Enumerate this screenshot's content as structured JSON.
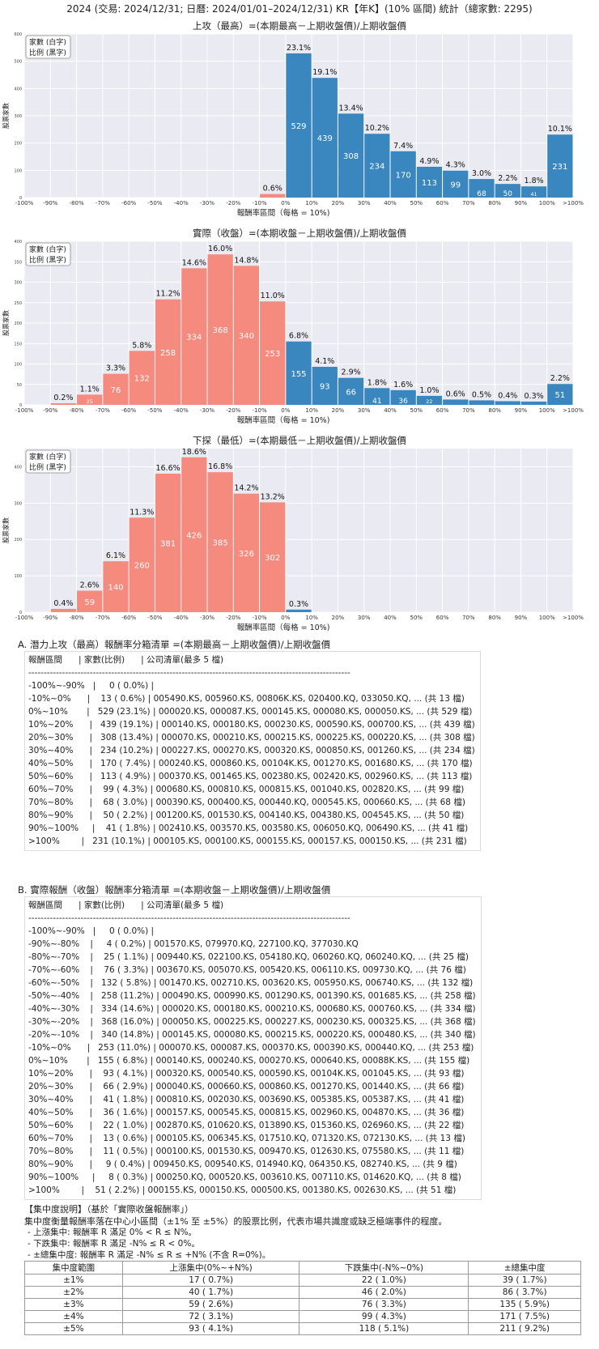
{
  "page_title": "2024 (交易: 2024/12/31; 日曆: 2024/01/01–2024/12/31) KR【年K】(10% 區間) 統計（總家數: 2295)",
  "colors": {
    "positive": "#3a87c0",
    "negative": "#f58a7e",
    "panel_bg": "#eaeaf2",
    "grid": "#ffffff"
  },
  "chart_data": [
    {
      "type": "bar",
      "title": "上攻（最高）=(本期最高－上期收盤價)/上期收盤價",
      "xlabel": "報酬率區間（每格 = 10%)",
      "ylabel": "股票家數",
      "legend": [
        "家數 (白字)",
        "比例 (黑字)"
      ],
      "legend_position": "top-left",
      "tick_labels": [
        "-100%",
        "-90%",
        "-80%",
        "-70%",
        "-60%",
        "-50%",
        "-40%",
        "-30%",
        "-20%",
        "-10%",
        "0%",
        "10%",
        "20%",
        "30%",
        "40%",
        "50%",
        "60%",
        "70%",
        "80%",
        "90%",
        "100%",
        ">100%"
      ],
      "categories": [
        "-100%~-90%",
        "-90%~-80%",
        "-80%~-70%",
        "-70%~-60%",
        "-60%~-50%",
        "-50%~-40%",
        "-40%~-30%",
        "-30%~-20%",
        "-20%~-10%",
        "-10%~0%",
        "0%~10%",
        "10%~20%",
        "20%~30%",
        "30%~40%",
        "40%~50%",
        "50%~60%",
        "60%~70%",
        "70%~80%",
        "80%~90%",
        "90%~100%",
        ">100%"
      ],
      "values": [
        0,
        0,
        0,
        0,
        0,
        0,
        0,
        0,
        0,
        13,
        529,
        439,
        308,
        234,
        170,
        113,
        99,
        68,
        50,
        41,
        231
      ],
      "percents": [
        "",
        "",
        "",
        "",
        "",
        "",
        "",
        "",
        "",
        "0.6%",
        "23.1%",
        "19.1%",
        "13.4%",
        "10.2%",
        "7.4%",
        "4.9%",
        "4.3%",
        "3.0%",
        "2.2%",
        "1.8%",
        "10.1%"
      ],
      "yticks": [
        0,
        100,
        200,
        300,
        400,
        500,
        600
      ],
      "ylim": [
        0,
        600
      ]
    },
    {
      "type": "bar",
      "title": "實際（收盤）=(本期收盤－上期收盤價)/上期收盤價",
      "xlabel": "報酬率區間（每格 = 10%)",
      "ylabel": "股票家數",
      "legend": [
        "家數 (白字)",
        "比例 (黑字)"
      ],
      "legend_position": "top-left",
      "tick_labels": [
        "-100%",
        "-90%",
        "-80%",
        "-70%",
        "-60%",
        "-50%",
        "-40%",
        "-30%",
        "-20%",
        "-10%",
        "0%",
        "10%",
        "20%",
        "30%",
        "40%",
        "50%",
        "60%",
        "70%",
        "80%",
        "90%",
        "100%",
        ">100%"
      ],
      "categories": [
        "-100%~-90%",
        "-90%~-80%",
        "-80%~-70%",
        "-70%~-60%",
        "-60%~-50%",
        "-50%~-40%",
        "-40%~-30%",
        "-30%~-20%",
        "-20%~-10%",
        "-10%~0%",
        "0%~10%",
        "10%~20%",
        "20%~30%",
        "30%~40%",
        "40%~50%",
        "50%~60%",
        "60%~70%",
        "70%~80%",
        "80%~90%",
        "90%~100%",
        ">100%"
      ],
      "values": [
        0,
        4,
        25,
        76,
        132,
        258,
        334,
        368,
        340,
        253,
        155,
        93,
        66,
        41,
        36,
        22,
        13,
        11,
        9,
        8,
        51
      ],
      "percents": [
        "",
        "0.2%",
        "1.1%",
        "3.3%",
        "5.8%",
        "11.2%",
        "14.6%",
        "16.0%",
        "14.8%",
        "11.0%",
        "6.8%",
        "4.1%",
        "2.9%",
        "1.8%",
        "1.6%",
        "1.0%",
        "0.6%",
        "0.5%",
        "0.4%",
        "0.3%",
        "2.2%"
      ],
      "yticks": [
        0,
        50,
        100,
        150,
        200,
        250,
        300,
        350,
        400
      ],
      "ylim": [
        0,
        400
      ]
    },
    {
      "type": "bar",
      "title": "下探（最低）=(本期最低－上期收盤價)/上期收盤價",
      "xlabel": "報酬率區間（每格 = 10%)",
      "ylabel": "股票家數",
      "legend": [
        "家數 (白字)",
        "比例 (黑字)"
      ],
      "legend_position": "top-left",
      "tick_labels": [
        "-100%",
        "-90%",
        "-80%",
        "-70%",
        "-60%",
        "-50%",
        "-40%",
        "-30%",
        "-20%",
        "-10%",
        "0%",
        "10%",
        "20%",
        "30%",
        "40%",
        "50%",
        "60%",
        "70%",
        "80%",
        "90%",
        "100%",
        ">100%"
      ],
      "categories": [
        "-100%~-90%",
        "-90%~-80%",
        "-80%~-70%",
        "-70%~-60%",
        "-60%~-50%",
        "-50%~-40%",
        "-40%~-30%",
        "-30%~-20%",
        "-20%~-10%",
        "-10%~0%",
        "0%~10%",
        "10%~20%",
        "20%~30%",
        "30%~40%",
        "40%~50%",
        "50%~60%",
        "60%~70%",
        "70%~80%",
        "80%~90%",
        "90%~100%",
        ">100%"
      ],
      "values": [
        0,
        9,
        59,
        140,
        260,
        381,
        426,
        385,
        326,
        302,
        7,
        0,
        0,
        0,
        0,
        0,
        0,
        0,
        0,
        0,
        0
      ],
      "percents": [
        "",
        "0.4%",
        "2.6%",
        "6.1%",
        "11.3%",
        "16.6%",
        "18.6%",
        "16.8%",
        "14.2%",
        "13.2%",
        "0.3%",
        "",
        "",
        "",
        "",
        "",
        "",
        "",
        "",
        "",
        ""
      ],
      "yticks": [
        0,
        100,
        200,
        300,
        400
      ],
      "ylim": [
        0,
        450
      ]
    }
  ],
  "list_a": {
    "title": "A. 潛力上攻（最高）報酬率分箱清單 =(本期最高－上期收盤價)/上期收盤價",
    "lines": [
      "報酬區間      | 家數(比例)      | 公司清單(最多 5 檔)",
      "---------------------------------------------------------------------------------------------------------",
      "-100%~-90%   |     0 ( 0.0%) |",
      "-10%~0%      |    13 ( 0.6%) | 005490.KS, 005960.KS, 00806K.KS, 020400.KQ, 033050.KQ, ... (共 13 檔)",
      "0%~10%       |   529 (23.1%) | 000020.KS, 000087.KS, 000145.KS, 000080.KS, 000050.KS, ... (共 529 檔)",
      "10%~20%      |   439 (19.1%) | 000140.KS, 000180.KS, 000230.KS, 000590.KS, 000700.KS, ... (共 439 檔)",
      "20%~30%      |   308 (13.4%) | 000070.KS, 000210.KS, 000215.KS, 000225.KS, 000220.KS, ... (共 308 檔)",
      "30%~40%      |   234 (10.2%) | 000227.KS, 000270.KS, 000320.KS, 000850.KS, 001260.KS, ... (共 234 檔)",
      "40%~50%      |   170 ( 7.4%) | 000240.KS, 000860.KS, 00104K.KS, 001270.KS, 001680.KS, ... (共 170 檔)",
      "50%~60%      |   113 ( 4.9%) | 000370.KS, 001465.KS, 002380.KS, 002420.KS, 002960.KS, ... (共 113 檔)",
      "60%~70%      |    99 ( 4.3%) | 000680.KS, 000810.KS, 000815.KS, 001040.KS, 002820.KS, ... (共 99 檔)",
      "70%~80%      |    68 ( 3.0%) | 000390.KS, 000400.KS, 000440.KQ, 000545.KS, 000660.KS, ... (共 68 檔)",
      "80%~90%      |    50 ( 2.2%) | 001200.KS, 001530.KS, 004140.KS, 004380.KS, 004545.KS, ... (共 50 檔)",
      "90%~100%     |    41 ( 1.8%) | 002410.KS, 003570.KS, 003580.KS, 006050.KQ, 006490.KS, ... (共 41 檔)",
      ">100%        |   231 (10.1%) | 000105.KS, 000100.KS, 000155.KS, 000157.KS, 000150.KS, ... (共 231 檔)"
    ]
  },
  "list_b": {
    "title": "B. 實際報酬（收盤）報酬率分箱清單 =(本期收盤－上期收盤價)/上期收盤價",
    "lines": [
      "報酬區間      | 家數(比例)      | 公司清單(最多 5 檔)",
      "---------------------------------------------------------------------------------------------------------",
      "-100%~-90%   |     0 ( 0.0%) |",
      "-90%~-80%    |     4 ( 0.2%) | 001570.KS, 079970.KQ, 227100.KQ, 377030.KQ",
      "-80%~-70%    |    25 ( 1.1%) | 009440.KS, 022100.KS, 054180.KQ, 060260.KQ, 060240.KQ, ... (共 25 檔)",
      "-70%~-60%    |    76 ( 3.3%) | 003670.KS, 005070.KS, 005420.KS, 006110.KS, 009730.KQ, ... (共 76 檔)",
      "-60%~-50%    |   132 ( 5.8%) | 001470.KS, 002710.KS, 003620.KS, 005950.KS, 006740.KS, ... (共 132 檔)",
      "-50%~-40%    |   258 (11.2%) | 000490.KS, 000990.KS, 001290.KS, 001390.KS, 001685.KS, ... (共 258 檔)",
      "-40%~-30%    |   334 (14.6%) | 000020.KS, 000180.KS, 000210.KS, 000680.KS, 000760.KS, ... (共 334 檔)",
      "-30%~-20%    |   368 (16.0%) | 000050.KS, 000225.KS, 000227.KS, 000230.KS, 000325.KS, ... (共 368 檔)",
      "-20%~-10%    |   340 (14.8%) | 000145.KS, 000080.KS, 000215.KS, 000220.KS, 000480.KS, ... (共 340 檔)",
      "-10%~0%      |   253 (11.0%) | 000070.KS, 000087.KS, 000370.KS, 000390.KS, 000440.KQ, ... (共 253 檔)",
      "0%~10%       |   155 ( 6.8%) | 000140.KS, 000240.KS, 000270.KS, 000640.KS, 00088K.KS, ... (共 155 檔)",
      "10%~20%      |    93 ( 4.1%) | 000320.KS, 000540.KS, 000590.KS, 00104K.KS, 001045.KS, ... (共 93 檔)",
      "20%~30%      |    66 ( 2.9%) | 000040.KS, 000660.KS, 000860.KS, 001270.KS, 001440.KS, ... (共 66 檔)",
      "30%~40%      |    41 ( 1.8%) | 000810.KS, 002030.KS, 003690.KS, 005385.KS, 005387.KS, ... (共 41 檔)",
      "40%~50%      |    36 ( 1.6%) | 000157.KS, 000545.KS, 000815.KS, 002960.KS, 004870.KS, ... (共 36 檔)",
      "50%~60%      |    22 ( 1.0%) | 002870.KS, 010620.KS, 013890.KS, 015360.KS, 026960.KS, ... (共 22 檔)",
      "60%~70%      |    13 ( 0.6%) | 000105.KS, 006345.KS, 017510.KQ, 071320.KS, 072130.KS, ... (共 13 檔)",
      "70%~80%      |    11 ( 0.5%) | 000100.KS, 001530.KS, 009470.KS, 012630.KS, 075580.KS, ... (共 11 檔)",
      "80%~90%      |     9 ( 0.4%) | 009450.KS, 009540.KS, 014940.KQ, 064350.KS, 082740.KS, ... (共 9 檔)",
      "90%~100%     |     8 ( 0.3%) | 000250.KQ, 000520.KS, 003610.KS, 007110.KS, 014620.KQ, ... (共 8 檔)",
      ">100%        |    51 ( 2.2%) | 000155.KS, 000150.KS, 000500.KS, 001380.KS, 002630.KS, ... (共 51 檔)"
    ]
  },
  "concentration": {
    "title": "【集中度說明】（基於「實際收盤報酬率」）",
    "description": "集中度衡量報酬率落在中心小區間（±1% 至 ±5%）的股票比例，代表市場共識度或缺乏極端事件的程度。",
    "items": [
      "- 上漲集中: 報酬率 R 滿足 0% < R ≤ N%。",
      "- 下跌集中: 報酬率 R 滿足 -N% ≤ R < 0%。",
      "- ±總集中度: 報酬率 R 滿足 -N% ≤ R ≤ +N% (不含 R=0%)。"
    ],
    "headers": [
      "集中度範圍",
      "上漲集中(0%~+N%)",
      "下跌集中(-N%~0%)",
      "±總集中度"
    ],
    "rows": [
      [
        "±1%",
        "17 ( 0.7%)",
        "22 ( 1.0%)",
        "39 ( 1.7%)"
      ],
      [
        "±2%",
        "40 ( 1.7%)",
        "46 ( 2.0%)",
        "86 ( 3.7%)"
      ],
      [
        "±3%",
        "59 ( 2.6%)",
        "76 ( 3.3%)",
        "135 ( 5.9%)"
      ],
      [
        "±4%",
        "72 ( 3.1%)",
        "99 ( 4.3%)",
        "171 ( 7.5%)"
      ],
      [
        "±5%",
        "93 ( 4.1%)",
        "118 ( 5.1%)",
        "211 ( 9.2%)"
      ]
    ]
  }
}
